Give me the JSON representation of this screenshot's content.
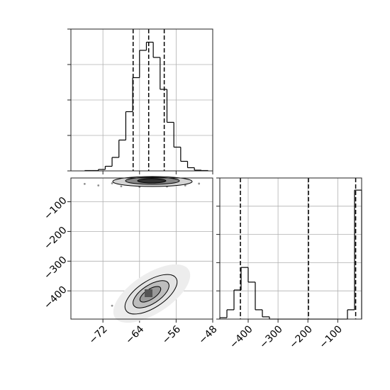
{
  "chart_data": [
    {
      "type": "histogram",
      "bins": [
        -76,
        -74.5,
        -73,
        -71.5,
        -70,
        -68.5,
        -67,
        -65.5,
        -64,
        -62.5,
        -61,
        -59.5,
        -58,
        -56.5,
        -55,
        -53.5,
        -52,
        -50.5,
        -49
      ],
      "values": [
        0.01,
        0.01,
        0.04,
        0.13,
        0.38,
        0.87,
        1.67,
        2.63,
        3.4,
        3.63,
        3.2,
        2.3,
        1.37,
        0.67,
        0.27,
        0.09,
        0.02,
        0.01
      ],
      "quantiles": [
        -65.4,
        -62,
        -58.6
      ],
      "xlim": [
        -79,
        -48
      ],
      "xticks": [
        -72,
        -64,
        -56,
        -48
      ],
      "ylim": [
        0,
        4
      ],
      "yticks": [
        0,
        1,
        2,
        3,
        4
      ],
      "grid": true,
      "color": "#000000"
    },
    {
      "type": "scatter",
      "x": [
        -70,
        -68,
        -67,
        -66,
        -65,
        -64,
        -64,
        -63,
        -63,
        -62,
        -62,
        -61,
        -61,
        -60,
        -60,
        -59,
        -58,
        -57,
        -56,
        -55,
        -66,
        -60,
        -64,
        -58,
        -76,
        -73,
        -70,
        -68,
        -66,
        -65,
        -64,
        -63,
        -62,
        -61,
        -60,
        -59,
        -58,
        -56,
        -54,
        -51
      ],
      "y": [
        -450,
        -440,
        -445,
        -430,
        -425,
        -435,
        -420,
        -420,
        -410,
        -415,
        -400,
        -410,
        -395,
        -405,
        -390,
        -385,
        -395,
        -380,
        -375,
        -370,
        -415,
        -420,
        -440,
        -400,
        -40,
        -45,
        -38,
        -48,
        -42,
        -35,
        -50,
        -44,
        -40,
        -46,
        -37,
        -43,
        -49,
        -41,
        -45,
        -39
      ],
      "xlim": [
        -79,
        -48
      ],
      "xticks": [
        {
          "value": -72,
          "label": "−72"
        },
        {
          "value": -64,
          "label": "−64"
        },
        {
          "value": -56,
          "label": "−56"
        },
        {
          "value": -48,
          "label": "−48"
        }
      ],
      "ylim": [
        -495,
        -20
      ],
      "yticks": [
        {
          "value": -100,
          "label": "−100"
        },
        {
          "value": -200,
          "label": "−200"
        },
        {
          "value": -300,
          "label": "−300"
        },
        {
          "value": -400,
          "label": "−400"
        }
      ],
      "grid": true,
      "color": "#444444"
    },
    {
      "type": "histogram",
      "bins": [
        -495,
        -471.25,
        -447.5,
        -423.75,
        -400,
        -376.25,
        -352.5,
        -328.75,
        -305,
        -281.25,
        -257.5,
        -233.75,
        -210,
        -186.25,
        -162.5,
        -138.75,
        -115,
        -91.25,
        -67.5,
        -43.75,
        -20
      ],
      "values": [
        0.05,
        0.33,
        1.03,
        1.83,
        1.31,
        0.33,
        0.08,
        0,
        0,
        0,
        0,
        0,
        0,
        0,
        0,
        0,
        0,
        0,
        0.33,
        4.57
      ],
      "quantiles": [
        -426,
        -198,
        -40
      ],
      "xlim": [
        -495,
        -20
      ],
      "xticks": [
        {
          "value": -400,
          "label": "−400"
        },
        {
          "value": -300,
          "label": "−300"
        },
        {
          "value": -200,
          "label": "−200"
        },
        {
          "value": -100,
          "label": "−100"
        }
      ],
      "ylim": [
        0,
        5
      ],
      "yticks": [
        0,
        1,
        2,
        3,
        4,
        5
      ],
      "grid": true,
      "color": "#000000"
    }
  ]
}
